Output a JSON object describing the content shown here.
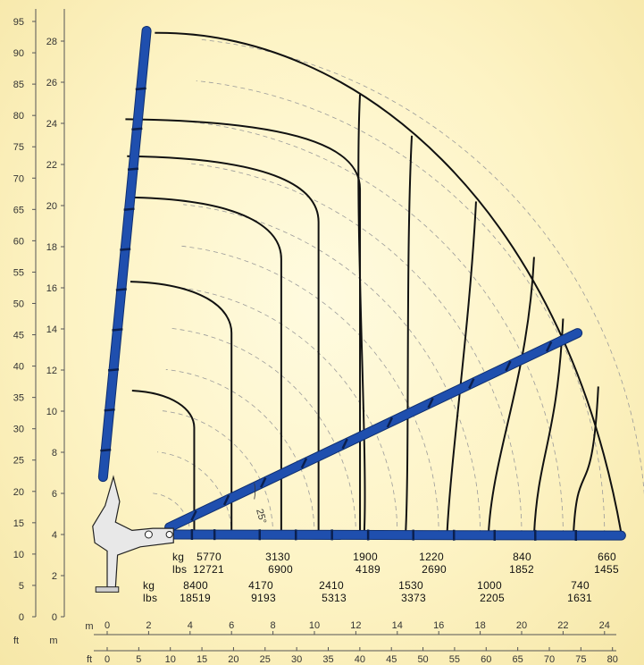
{
  "chart_data": {
    "type": "load-chart",
    "left_axis_units": {
      "ft": "ft",
      "m": "m"
    },
    "bottom_axis_units": {
      "m": "m",
      "ft": "ft"
    },
    "y_ft_ticks": [
      "0",
      "5",
      "10",
      "15",
      "20",
      "25",
      "30",
      "35",
      "40",
      "45",
      "50",
      "55",
      "60",
      "65",
      "70",
      "75",
      "80",
      "85",
      "90",
      "95"
    ],
    "y_m_ticks": [
      "0",
      "2",
      "4",
      "6",
      "8",
      "10",
      "12",
      "14",
      "16",
      "18",
      "20",
      "22",
      "24",
      "26",
      "28"
    ],
    "x_m_ticks": [
      "0",
      "2",
      "4",
      "6",
      "8",
      "10",
      "12",
      "14",
      "16",
      "18",
      "20",
      "22",
      "24"
    ],
    "x_ft_ticks": [
      "0",
      "5",
      "10",
      "15",
      "20",
      "25",
      "30",
      "35",
      "40",
      "45",
      "50",
      "55",
      "60",
      "65",
      "70",
      "75",
      "80"
    ],
    "angle_label": "25°",
    "load_rows": [
      {
        "unit_kg": "kg",
        "unit_lbs": "lbs",
        "kg": [
          "5770",
          "3130",
          "1900",
          "1220",
          "840",
          "660"
        ],
        "lbs": [
          "12721",
          "6900",
          "4189",
          "2690",
          "1852",
          "1455"
        ]
      },
      {
        "unit_kg": "kg",
        "unit_lbs": "lbs",
        "kg": [
          "8400",
          "4170",
          "2410",
          "1530",
          "1000",
          "740"
        ],
        "lbs": [
          "18519",
          "9193",
          "5313",
          "3373",
          "2205",
          "1631"
        ]
      }
    ],
    "colors": {
      "boom": "#1f4fae",
      "curves": "#111111",
      "background": "#fdf3c4"
    }
  }
}
